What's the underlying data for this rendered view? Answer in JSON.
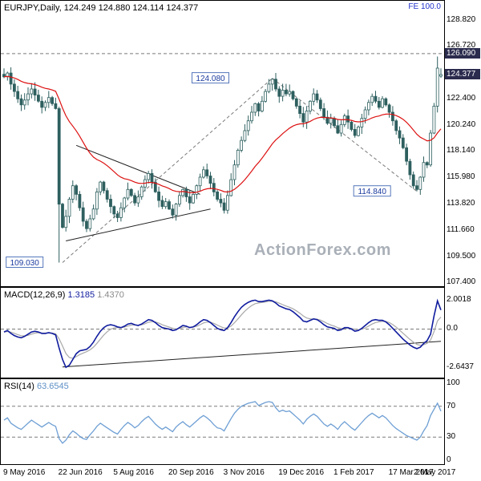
{
  "colors": {
    "candle": "#2e5f5f",
    "candle_up_fill": "#ffffff",
    "ma": "#dd1111",
    "macd": "#101c9e",
    "signal": "#a8a8a8",
    "rsi": "#6e9fd4",
    "annotation_text": "#1a3a9e",
    "annotation_border": "#5577bb",
    "tag_bg": "#2b2b4e",
    "tag_fg": "#ffffff",
    "dashed": "#7a7a7a",
    "trendline": "#222222",
    "watermark": "#aab0b8",
    "fe_text": "#2233cc"
  },
  "main_chart": {
    "title": "EURJPY,Daily, 124.249 124.880 124.114 124.377",
    "fe_label": "FE 100.0",
    "watermark": "ActionForex.com",
    "y_axis_labels": [
      "128.820",
      "126.720",
      "122.400",
      "120.240",
      "118.140",
      "115.980",
      "113.820",
      "111.660",
      "109.500",
      "107.400"
    ],
    "price_tags": [
      {
        "text": "126.090",
        "price": 126.09
      },
      {
        "text": "124.377",
        "price": 124.377
      }
    ],
    "annotations": [
      {
        "text": "124.080",
        "price": 124.08,
        "index": 60
      },
      {
        "text": "114.840",
        "price": 114.84,
        "index": 107
      },
      {
        "text": "109.030",
        "price": 109.03,
        "index": 6
      }
    ]
  },
  "macd_panel": {
    "name": "MACD(12,26,9)",
    "value1": "1.3185",
    "value2": "1.4370",
    "y_axis_labels": [
      "2.0018",
      "0.0",
      "-2.6437"
    ]
  },
  "rsi_panel": {
    "name": "RSI(14)",
    "value": "63.6545",
    "y_axis_labels": [
      "100",
      "70",
      "30",
      "0"
    ]
  },
  "chart_data": [
    {
      "type": "candlestick",
      "symbol": "EURJPY",
      "timeframe": "Daily",
      "ohlc_last": {
        "open": 124.249,
        "high": 124.88,
        "low": 124.114,
        "close": 124.377
      },
      "x_labels": [
        "9 May 2016",
        "22 Jun 2016",
        "5 Aug 2016",
        "20 Sep 2016",
        "3 Nov 2016",
        "19 Dec 2016",
        "1 Feb 2017",
        "17 Mar 2017",
        "2 May 2017"
      ],
      "ylim": [
        107.1,
        130.4
      ],
      "closes": [
        124.2,
        124.5,
        123.6,
        123.0,
        122.4,
        121.9,
        122.3,
        122.8,
        123.2,
        122.7,
        122.2,
        121.7,
        122.1,
        122.5,
        122.0,
        121.6,
        113.8,
        111.9,
        112.8,
        114.2,
        115.3,
        114.6,
        113.5,
        112.4,
        111.8,
        112.6,
        113.4,
        114.8,
        115.6,
        114.9,
        114.2,
        113.6,
        113.0,
        112.7,
        113.5,
        114.3,
        115.0,
        114.5,
        113.9,
        114.4,
        115.2,
        115.8,
        116.3,
        115.6,
        114.8,
        114.1,
        113.6,
        114.0,
        113.4,
        112.9,
        113.8,
        114.5,
        115.0,
        114.4,
        113.9,
        114.6,
        115.3,
        116.0,
        116.6,
        116.1,
        115.5,
        114.8,
        114.2,
        113.9,
        113.3,
        114.5,
        115.8,
        117.0,
        118.2,
        119.0,
        119.8,
        120.6,
        121.3,
        122.0,
        121.4,
        122.2,
        123.0,
        123.6,
        124.0,
        123.2,
        122.6,
        123.1,
        122.8,
        123.0,
        122.4,
        121.8,
        121.2,
        120.5,
        121.4,
        122.2,
        122.8,
        122.3,
        121.6,
        120.9,
        120.4,
        120.8,
        120.2,
        119.6,
        120.3,
        121.0,
        120.5,
        119.9,
        119.4,
        120.1,
        120.8,
        121.5,
        122.1,
        122.6,
        122.2,
        121.7,
        122.4,
        121.9,
        121.3,
        120.6,
        119.8,
        119.2,
        118.4,
        117.3,
        116.2,
        115.3,
        115.0,
        116.0,
        117.2,
        117.0,
        119.6,
        121.8,
        124.9,
        124.377
      ],
      "wick_overrides": {
        "16": {
          "low": 109.03
        },
        "78": {
          "high": 124.08
        },
        "120": {
          "low": 114.84
        },
        "126": {
          "high": 125.85
        }
      },
      "key_levels": {
        "fe_100": 126.09,
        "swing_high": 124.08,
        "swing_low_1": 109.03,
        "swing_low_2": 114.84,
        "current": 124.377
      },
      "zigzag": [
        [
          17,
          109.03
        ],
        [
          78,
          124.08
        ],
        [
          120,
          114.84
        ]
      ],
      "trendlines": [
        [
          21,
          118.6,
          57,
          114.6
        ],
        [
          18,
          110.8,
          60,
          113.4
        ]
      ]
    },
    {
      "type": "line",
      "title": "MACD(12,26,9)",
      "macd_value": 1.3185,
      "signal_value": 1.437,
      "ylim": [
        -3.35,
        2.85
      ],
      "y_ticks": [
        2.0018,
        0.0,
        -2.6437
      ],
      "dashed_levels": [
        0
      ],
      "trendline": [
        17,
        -2.62,
        127,
        -0.85
      ],
      "values": [
        -0.2,
        -0.1,
        -0.3,
        -0.45,
        -0.55,
        -0.6,
        -0.5,
        -0.35,
        -0.2,
        -0.15,
        -0.2,
        -0.3,
        -0.3,
        -0.25,
        -0.3,
        -0.4,
        -1.3,
        -2.1,
        -2.64,
        -2.5,
        -2.1,
        -1.7,
        -1.5,
        -1.45,
        -1.4,
        -1.2,
        -0.9,
        -0.5,
        -0.15,
        0.1,
        0.25,
        0.3,
        0.25,
        0.15,
        0.1,
        0.2,
        0.35,
        0.4,
        0.3,
        0.25,
        0.35,
        0.5,
        0.65,
        0.6,
        0.45,
        0.25,
        0.1,
        0.05,
        0.0,
        -0.1,
        -0.05,
        0.1,
        0.25,
        0.2,
        0.1,
        0.15,
        0.3,
        0.5,
        0.65,
        0.6,
        0.45,
        0.25,
        0.05,
        -0.05,
        -0.1,
        0.1,
        0.45,
        0.85,
        1.2,
        1.5,
        1.7,
        1.85,
        1.95,
        2.0,
        1.9,
        1.9,
        1.95,
        2.0,
        1.95,
        1.8,
        1.6,
        1.5,
        1.4,
        1.35,
        1.2,
        1.0,
        0.8,
        0.55,
        0.5,
        0.6,
        0.7,
        0.65,
        0.5,
        0.3,
        0.15,
        0.1,
        0.05,
        -0.1,
        -0.05,
        0.1,
        0.1,
        0.0,
        -0.15,
        -0.1,
        0.05,
        0.25,
        0.45,
        0.6,
        0.65,
        0.6,
        0.6,
        0.5,
        0.3,
        0.05,
        -0.2,
        -0.45,
        -0.7,
        -0.9,
        -1.1,
        -1.25,
        -1.35,
        -1.25,
        -1.0,
        -0.8,
        -0.35,
        0.9,
        1.95,
        1.3185
      ]
    },
    {
      "type": "line",
      "title": "RSI(14)",
      "current_value": 63.6545,
      "ylim": [
        0,
        100
      ],
      "y_ticks": [
        100,
        70,
        30,
        0
      ],
      "dashed_levels": [
        70,
        30
      ],
      "values": [
        52,
        55,
        48,
        45,
        42,
        40,
        44,
        48,
        52,
        49,
        46,
        43,
        46,
        49,
        46,
        44,
        28,
        22,
        26,
        33,
        38,
        35,
        31,
        28,
        27,
        33,
        38,
        44,
        48,
        45,
        42,
        39,
        36,
        34,
        40,
        45,
        49,
        46,
        42,
        45,
        50,
        54,
        57,
        52,
        47,
        43,
        40,
        43,
        40,
        37,
        43,
        47,
        50,
        46,
        43,
        47,
        51,
        55,
        58,
        55,
        51,
        46,
        42,
        41,
        38,
        46,
        54,
        61,
        66,
        70,
        72,
        74,
        75,
        76,
        71,
        73,
        75,
        76,
        75,
        68,
        63,
        65,
        63,
        64,
        60,
        56,
        52,
        47,
        53,
        57,
        60,
        57,
        52,
        47,
        44,
        47,
        44,
        40,
        46,
        50,
        46,
        42,
        39,
        44,
        49,
        54,
        58,
        61,
        58,
        55,
        58,
        55,
        50,
        45,
        41,
        38,
        35,
        32,
        30,
        28,
        26,
        30,
        38,
        45,
        58,
        66,
        74,
        63.65
      ]
    }
  ]
}
